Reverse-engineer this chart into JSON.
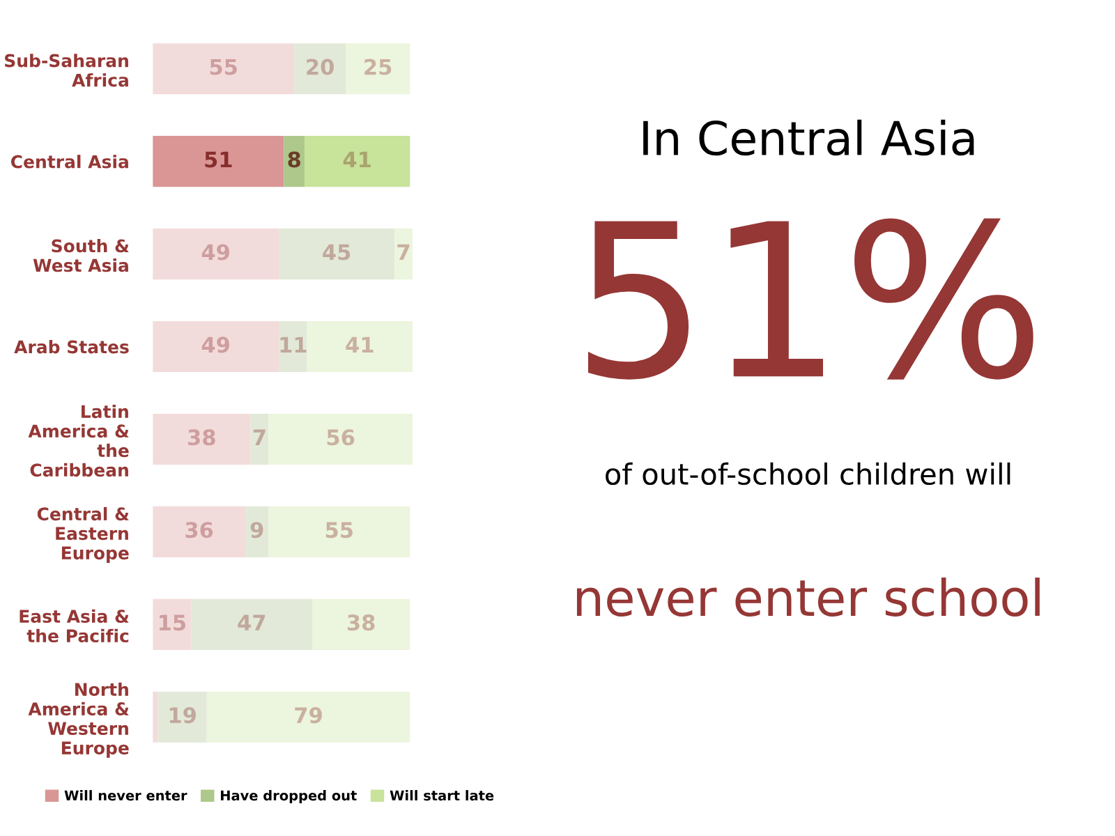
{
  "chart_data": {
    "type": "bar",
    "orientation": "horizontal",
    "stacked": true,
    "legend": "bottom",
    "grid": false,
    "categories": [
      "Sub-Saharan Africa",
      "Central Asia",
      "South & West Asia",
      "Arab States",
      "Latin America & the Caribbean",
      "Central & Eastern Europe",
      "East Asia & the Pacific",
      "North America & Western Europe"
    ],
    "series": [
      {
        "name": "Will never enter",
        "color": "#d99694",
        "colors": [
          "#f2dcdb",
          "#d99694",
          "#f2dcdb",
          "#f2dcdb",
          "#f2dcdb",
          "#f2dcdb",
          "#f2dcdb",
          "#f2dcdb"
        ],
        "values": [
          55,
          51,
          49,
          49,
          38,
          36,
          15,
          2
        ],
        "value_labels": [
          "55",
          "51",
          "49",
          "49",
          "38",
          "36",
          "15",
          null
        ]
      },
      {
        "name": "Have dropped out",
        "color": "#adc88a",
        "colors": [
          "#e3e9d8",
          "#adc88a",
          "#e3e9d8",
          "#e3e9d8",
          "#e3e9d8",
          "#e3e9d8",
          "#e3e9d8",
          "#e3e9d8"
        ],
        "values": [
          20,
          8,
          45,
          11,
          7,
          9,
          47,
          19
        ],
        "value_labels": [
          "20",
          "8",
          "45",
          "11",
          "7",
          "9",
          "47",
          "19"
        ]
      },
      {
        "name": "Will start late",
        "color": "#c8e39a",
        "colors": [
          "#ecf5dd",
          "#c8e39a",
          "#ecf5dd",
          "#ecf5dd",
          "#ecf5dd",
          "#ecf5dd",
          "#ecf5dd",
          "#ecf5dd"
        ],
        "values": [
          25,
          41,
          7,
          41,
          56,
          55,
          38,
          79
        ],
        "value_labels": [
          "25",
          "41",
          "7",
          "41",
          "56",
          "55",
          "38",
          "79"
        ]
      }
    ],
    "annotations": [
      "In Central Asia",
      "51%",
      "of out-of-school children will",
      "never enter school"
    ]
  }
}
